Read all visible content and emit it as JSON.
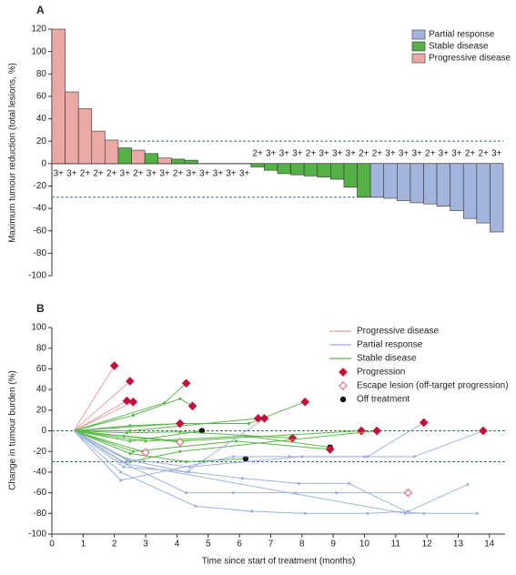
{
  "chart_data": [
    {
      "type": "bar",
      "title": "A",
      "ylabel": "Maximum tumour reduction (total lesions, %)",
      "ylim": [
        -100,
        120
      ],
      "yticks": [
        -100,
        -80,
        -60,
        -40,
        -20,
        0,
        20,
        40,
        60,
        80,
        100,
        120
      ],
      "reference_lines": [
        20,
        -30
      ],
      "legend": "upper right",
      "categories": [
        "3+",
        "3+",
        "2+",
        "2+",
        "2+",
        "3+",
        "2+",
        "3+",
        "3+",
        "2+",
        "3+",
        "3+",
        "3+",
        "3+",
        "3+",
        "2+",
        "3+",
        "3+",
        "3+",
        "2+",
        "3+",
        "3+",
        "3+",
        "2+",
        "2+",
        "3+",
        "3+",
        "3+",
        "2+",
        "3+",
        "3+",
        "2+",
        "2+",
        "3+"
      ],
      "series": [
        {
          "name": "Partial response",
          "color": "#a3b5dc",
          "values": [
            null,
            null,
            null,
            null,
            null,
            null,
            null,
            null,
            null,
            null,
            null,
            null,
            null,
            null,
            null,
            null,
            null,
            null,
            null,
            null,
            null,
            null,
            null,
            null,
            -30,
            -31,
            -33,
            -35,
            -36,
            -38,
            -42,
            -49,
            -53,
            -61
          ]
        },
        {
          "name": "Stable disease",
          "color": "#55b046",
          "values": [
            null,
            null,
            null,
            null,
            null,
            14,
            null,
            9,
            null,
            4,
            3,
            0,
            0,
            0,
            0,
            -3,
            -6,
            -9,
            -10,
            -11,
            -12,
            -14,
            -21,
            -30,
            null,
            null,
            null,
            null,
            null,
            null,
            null,
            null,
            null,
            null
          ]
        },
        {
          "name": "Progressive disease",
          "color": "#eaa9a6",
          "values": [
            120,
            64,
            49,
            29,
            21,
            null,
            12,
            null,
            5,
            null,
            null,
            null,
            null,
            null,
            null,
            null,
            null,
            null,
            null,
            null,
            null,
            null,
            null,
            null,
            null,
            null,
            null,
            null,
            null,
            null,
            null,
            null,
            null,
            null
          ]
        }
      ]
    },
    {
      "type": "line",
      "title": "B",
      "ylabel": "Change in tumour burden (%)",
      "xlabel": "Time since start of treatment (months)",
      "xlim": [
        0,
        14.5
      ],
      "xticks": [
        0,
        1,
        2,
        3,
        4,
        5,
        6,
        7,
        8,
        9,
        10,
        11,
        12,
        13,
        14
      ],
      "ylim": [
        -100,
        100
      ],
      "yticks": [
        -100,
        -80,
        -60,
        -40,
        -20,
        0,
        20,
        40,
        60,
        80,
        100
      ],
      "reference_lines": [
        0,
        -30
      ],
      "legend_lines": [
        {
          "name": "Progressive disease",
          "color": "#e8a0a0"
        },
        {
          "name": "Partial response",
          "color": "#9fb4dc"
        },
        {
          "name": "Stable disease",
          "color": "#5cb84a"
        }
      ],
      "legend_markers": [
        {
          "name": "Progression",
          "color": "#c0143c",
          "shape": "diamond"
        },
        {
          "name": "Escape lesion (off-target progression)",
          "color": "#e07080",
          "shape": "diamond-open"
        },
        {
          "name": "Off treatment",
          "color": "#111111",
          "shape": "circle"
        }
      ],
      "series": [
        {
          "group": 0,
          "end": 0,
          "x": [
            0.7,
            2.0
          ],
          "values": [
            0,
            63
          ]
        },
        {
          "group": 0,
          "end": 0,
          "x": [
            0.7,
            2.5
          ],
          "values": [
            0,
            48
          ]
        },
        {
          "group": 0,
          "end": 0,
          "x": [
            0.7,
            2.4
          ],
          "values": [
            0,
            29
          ]
        },
        {
          "group": 0,
          "end": 0,
          "x": [
            0.7,
            2.6
          ],
          "values": [
            0,
            28
          ]
        },
        {
          "group": 2,
          "end": 0,
          "x": [
            0.7,
            3.6,
            4.3
          ],
          "values": [
            0,
            27,
            46
          ]
        },
        {
          "group": 2,
          "end": 0,
          "x": [
            0.7,
            2.6,
            4.1,
            4.5
          ],
          "values": [
            0,
            15,
            31,
            24
          ]
        },
        {
          "group": 2,
          "end": 0,
          "x": [
            0.7,
            2.5,
            4.1,
            6.3,
            8.1
          ],
          "values": [
            0,
            5,
            7,
            7,
            28
          ]
        },
        {
          "group": 2,
          "end": 0,
          "x": [
            0.7,
            2.5,
            6.6
          ],
          "values": [
            0,
            0,
            12
          ]
        },
        {
          "group": 2,
          "end": 2,
          "x": [
            0.7,
            2.5,
            4.8
          ],
          "values": [
            0,
            -10,
            0
          ]
        },
        {
          "group": 2,
          "end": 2,
          "x": [
            0.7,
            3.0,
            6.2,
            8.9
          ],
          "values": [
            0,
            -10,
            -5,
            -16
          ]
        },
        {
          "group": 2,
          "end": 2,
          "x": [
            0.7,
            2.5,
            4.3,
            6.2
          ],
          "values": [
            0,
            -22,
            -30,
            -27
          ]
        },
        {
          "group": 2,
          "end": 0,
          "x": [
            0.7,
            2.4,
            4.1,
            7.7
          ],
          "values": [
            0,
            -2,
            -1,
            -7
          ]
        },
        {
          "group": 2,
          "end": 0,
          "x": [
            0.7,
            2.6,
            5.9,
            8.9
          ],
          "values": [
            0,
            -20,
            -10,
            -18
          ]
        },
        {
          "group": 2,
          "end": 0,
          "x": [
            0.7,
            2.3,
            4.1,
            9.9
          ],
          "values": [
            0,
            -5,
            -10,
            0
          ]
        },
        {
          "group": 2,
          "end": 0,
          "x": [
            0.7,
            2.5,
            4.1,
            10.4
          ],
          "values": [
            0,
            -30,
            -20,
            0
          ]
        },
        {
          "group": 2,
          "end": 1,
          "x": [
            0.7,
            3.0
          ],
          "values": [
            0,
            -21
          ]
        },
        {
          "group": 2,
          "end": 1,
          "x": [
            0.7,
            4.1
          ],
          "values": [
            0,
            -11
          ]
        },
        {
          "group": 2,
          "end": 0,
          "x": [
            0.7,
            4.1
          ],
          "values": [
            0,
            7
          ]
        },
        {
          "group": 1,
          "end": 1,
          "x": [
            0.7,
            2.2,
            4.3,
            5.8,
            7.8,
            9.1,
            11.4
          ],
          "values": [
            0,
            -30,
            -60,
            -60,
            -60,
            -60,
            -60
          ]
        },
        {
          "group": 1,
          "end": null,
          "x": [
            0.7,
            2.2,
            4.6,
            6.4,
            8.1,
            10.1,
            11.4,
            13.3
          ],
          "values": [
            0,
            -40,
            -73,
            -78,
            -80,
            -80,
            -78,
            -52
          ]
        },
        {
          "group": 1,
          "end": null,
          "x": [
            0.7,
            2.3,
            4.4,
            6.1,
            7.9,
            9.5,
            11.4,
            11.9
          ],
          "values": [
            0,
            -35,
            -40,
            -46,
            -51,
            -51,
            -79,
            -80
          ]
        },
        {
          "group": 1,
          "end": 0,
          "x": [
            0.7,
            2.4,
            4.4,
            8.0,
            10.1,
            11.9
          ],
          "values": [
            0,
            -27,
            -35,
            -25,
            -25,
            8
          ]
        },
        {
          "group": 1,
          "end": 0,
          "x": [
            0.7,
            2.2,
            5.8,
            7.6,
            10.0,
            11.6,
            13.8
          ],
          "values": [
            0,
            -48,
            -25,
            -25,
            -25,
            -25,
            0
          ]
        },
        {
          "group": 1,
          "end": 0,
          "x": [
            0.7,
            2.4,
            4.3,
            6.8
          ],
          "values": [
            0,
            -28,
            -40,
            12
          ]
        },
        {
          "group": 1,
          "end": null,
          "x": [
            0.7,
            2.4,
            11.3,
            13.6
          ],
          "values": [
            0,
            -32,
            -80,
            -80
          ]
        }
      ]
    }
  ]
}
